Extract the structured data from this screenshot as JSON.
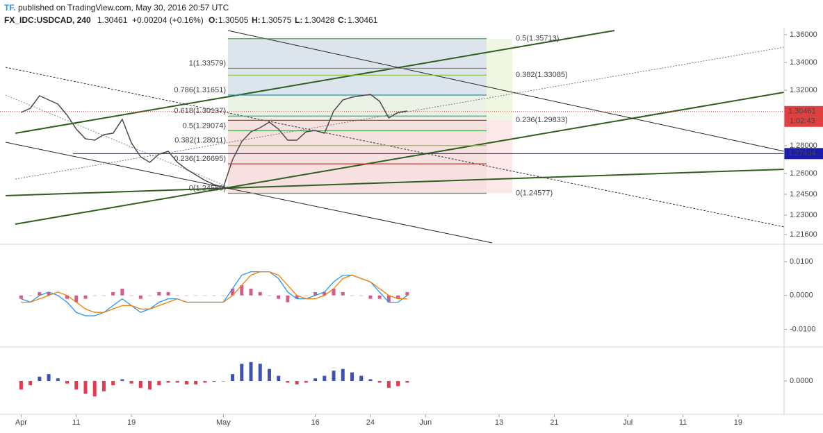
{
  "header": {
    "publisher": "TF.",
    "published": "published on TradingView.com, May 30, 2016 20:57 UTC",
    "symbol": "FX_IDC:USDCAD, 240",
    "last": 1.30461,
    "change": "+0.00204 (+0.16%)",
    "ohlc": [
      {
        "key": "O:",
        "value": 1.30505
      },
      {
        "key": "H:",
        "value": 1.30575
      },
      {
        "key": "L:",
        "value": 1.30428
      },
      {
        "key": "C:",
        "value": 1.30461
      }
    ]
  },
  "chart_data": [
    {
      "type": "line",
      "color": "#4a4a4a",
      "x": [
        0,
        1,
        2,
        3,
        4,
        5,
        6,
        7,
        8,
        9,
        10,
        11,
        12,
        13,
        14,
        15,
        16,
        17,
        18,
        19,
        20,
        21,
        22,
        23,
        24,
        25,
        26,
        27,
        28,
        29,
        30,
        31,
        32,
        33,
        34,
        35,
        36,
        37,
        38,
        39,
        40,
        41,
        42
      ],
      "values": [
        1.304,
        1.307,
        1.316,
        1.313,
        1.31,
        1.302,
        1.292,
        1.285,
        1.284,
        1.288,
        1.289,
        1.299,
        1.282,
        1.272,
        1.268,
        1.274,
        1.276,
        1.268,
        1.263,
        1.259,
        1.255,
        1.252,
        1.25,
        1.27,
        1.283,
        1.29,
        1.293,
        1.297,
        1.292,
        1.284,
        1.284,
        1.29,
        1.291,
        1.289,
        1.305,
        1.313,
        1.315,
        1.316,
        1.317,
        1.312,
        1.3,
        1.304,
        1.305
      ],
      "xlim": [
        -2.3,
        83
      ],
      "xticks": [
        {
          "value": 0,
          "label": "Apr"
        },
        {
          "value": 6,
          "label": "11"
        },
        {
          "value": 12,
          "label": "19"
        },
        {
          "value": 22,
          "label": "May"
        },
        {
          "value": 32,
          "label": "16"
        },
        {
          "value": 38,
          "label": "24"
        },
        {
          "value": 44,
          "label": "Jun"
        },
        {
          "value": 52,
          "label": "13"
        },
        {
          "value": 58,
          "label": "21"
        },
        {
          "value": 66,
          "label": "Jul"
        },
        {
          "value": 72,
          "label": "11"
        },
        {
          "value": 78,
          "label": "19"
        }
      ],
      "ylim": [
        1.21,
        1.365
      ],
      "yticks": [
        {
          "value": 1.36,
          "label": "1.36000"
        },
        {
          "value": 1.34,
          "label": "1.34000"
        },
        {
          "value": 1.32,
          "label": "1.32000"
        },
        {
          "value": 1.28,
          "label": "1.28000"
        },
        {
          "value": 1.26,
          "label": "1.26000"
        },
        {
          "value": 1.245,
          "label": "1.24500"
        },
        {
          "value": 1.23,
          "label": "1.23000"
        },
        {
          "value": 1.216,
          "label": "1.21600"
        }
      ],
      "last_price": 1.30461,
      "last_color": "#e04040",
      "countdown": "1:02:43",
      "hline": {
        "value": 1.27434,
        "color": "#1c1ca8"
      },
      "fib_left": [
        {
          "price": 1.33579,
          "label": "1(1.33579)",
          "color": "#808080"
        },
        {
          "price": 1.31651,
          "label": "0.786(1.31651)",
          "color": "#2a8fa8"
        },
        {
          "price": 1.30137,
          "label": "0.618(1.30137)",
          "color": "#3aa58a"
        },
        {
          "price": 1.29074,
          "label": "0.5(1.29074)",
          "color": "#43a047"
        },
        {
          "price": 1.28011,
          "label": "0.382(1.28011)",
          "color": "#8bbf3a"
        },
        {
          "price": 1.26695,
          "label": "0.236(1.26695)",
          "color": "#c0392b"
        },
        {
          "price": 1.24569,
          "label": "0(1.24569)",
          "color": "#808080"
        }
      ],
      "fib_right": [
        {
          "price": 1.35713,
          "label": "0.5(1.35713)",
          "color": "#33b033"
        },
        {
          "price": 1.33085,
          "label": "0.382(1.33085)",
          "color": "#8bbf3a"
        },
        {
          "price": 1.29833,
          "label": "0.236(1.29833)",
          "color": "#c0392b"
        },
        {
          "price": 1.24577,
          "label": "0(1.24577)",
          "color": "#808080"
        }
      ]
    },
    {
      "type": "line",
      "ylim": [
        -0.0148,
        0.0145
      ],
      "yticks": [
        {
          "value": 0.01,
          "label": "0.0100"
        },
        {
          "value": 0,
          "label": "0.0000"
        },
        {
          "value": -0.01,
          "label": "-0.0100"
        }
      ],
      "series": [
        {
          "color": "#2196f3",
          "values": [
            -0.001,
            -0.002,
            0.0,
            0.001,
            0.0,
            -0.002,
            -0.005,
            -0.006,
            -0.006,
            -0.005,
            -0.003,
            -0.001,
            -0.003,
            -0.005,
            -0.004,
            -0.002,
            -0.001,
            -0.001,
            -0.002,
            -0.002,
            -0.002,
            -0.002,
            -0.002,
            0.002,
            0.006,
            0.007,
            0.007,
            0.007,
            0.005,
            0.001,
            -0.001,
            -0.001,
            0.0,
            0.001,
            0.004,
            0.006,
            0.006,
            0.005,
            0.004,
            0.001,
            -0.002,
            -0.002,
            0.0
          ]
        },
        {
          "color": "#f57c00",
          "values": [
            -0.002,
            -0.002,
            -0.001,
            0.0,
            0.001,
            0.0,
            -0.002,
            -0.004,
            -0.005,
            -0.005,
            -0.004,
            -0.003,
            -0.003,
            -0.004,
            -0.004,
            -0.003,
            -0.002,
            -0.001,
            -0.002,
            -0.002,
            -0.002,
            -0.002,
            -0.002,
            0.0,
            0.003,
            0.006,
            0.007,
            0.007,
            0.006,
            0.003,
            0.0,
            -0.001,
            -0.001,
            0.0,
            0.002,
            0.005,
            0.006,
            0.005,
            0.004,
            0.002,
            0.0,
            -0.001,
            -0.001
          ]
        }
      ],
      "histogram": {
        "color": "#c2185b",
        "values": [
          -0.001,
          0.0,
          0.001,
          0.001,
          0.0,
          -0.001,
          -0.002,
          -0.001,
          0.0,
          0.0,
          0.001,
          0.002,
          0.0,
          -0.001,
          0.0,
          0.001,
          0.001,
          0.0,
          0.0,
          0.0,
          0.0,
          0.0,
          0.0,
          0.002,
          0.003,
          0.002,
          0.001,
          0.0,
          -0.001,
          -0.002,
          -0.001,
          0.0,
          0.001,
          0.001,
          0.002,
          0.001,
          0.0,
          0.0,
          -0.001,
          -0.001,
          -0.002,
          -0.001,
          0.001
        ]
      }
    },
    {
      "type": "bar",
      "ylim": [
        -0.0038,
        0.0038
      ],
      "yticks": [
        {
          "value": 0,
          "label": "0.0000"
        }
      ],
      "colors": [
        "#3f51b5",
        "#e53950"
      ],
      "values": [
        -0.001,
        -0.0005,
        0.0005,
        0.0008,
        0.0003,
        -0.0003,
        -0.001,
        -0.0015,
        -0.0018,
        -0.0012,
        -0.0005,
        0.0002,
        -0.0003,
        -0.0008,
        -0.001,
        -0.0005,
        -0.0002,
        -0.0002,
        -0.0004,
        -0.0004,
        -0.0002,
        -0.0001,
        0.0,
        0.0008,
        0.002,
        0.0022,
        0.002,
        0.0014,
        0.0006,
        -0.0002,
        -0.0004,
        -0.0002,
        0.0003,
        0.0006,
        0.0012,
        0.0014,
        0.001,
        0.0006,
        0.0002,
        -0.0002,
        -0.0008,
        -0.0006,
        -0.0002
      ]
    }
  ]
}
